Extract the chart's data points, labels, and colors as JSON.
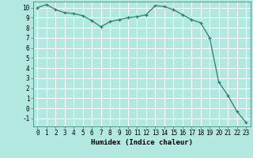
{
  "x": [
    0,
    1,
    2,
    3,
    4,
    5,
    6,
    7,
    8,
    9,
    10,
    11,
    12,
    13,
    14,
    15,
    16,
    17,
    18,
    19,
    20,
    21,
    22,
    23
  ],
  "y": [
    10,
    10.3,
    9.8,
    9.5,
    9.4,
    9.2,
    8.7,
    8.1,
    8.6,
    8.8,
    9.0,
    9.1,
    9.3,
    10.2,
    10.1,
    9.8,
    9.3,
    8.8,
    8.5,
    7.0,
    2.6,
    1.3,
    -0.3,
    -1.4
  ],
  "line_color": "#2e7d6e",
  "marker": "+",
  "marker_size": 3,
  "xlabel": "Humidex (Indice chaleur)",
  "xlim": [
    -0.5,
    23.5
  ],
  "ylim": [
    -1.8,
    10.6
  ],
  "yticks": [
    -1,
    0,
    1,
    2,
    3,
    4,
    5,
    6,
    7,
    8,
    9,
    10
  ],
  "xticks": [
    0,
    1,
    2,
    3,
    4,
    5,
    6,
    7,
    8,
    9,
    10,
    11,
    12,
    13,
    14,
    15,
    16,
    17,
    18,
    19,
    20,
    21,
    22,
    23
  ],
  "bg_color": "#b2e8e0",
  "grid_color": "#ffffff",
  "label_fontsize": 6.5,
  "tick_fontsize": 5.5,
  "linewidth": 0.9,
  "markeredgewidth": 0.9
}
